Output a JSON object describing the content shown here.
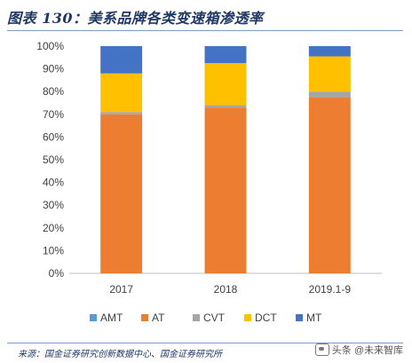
{
  "header": {
    "title": "图表 130：美系品牌各类变速箱渗透率"
  },
  "footer": {
    "source": "来源：国金证券研究创新数据中心、国金证券研究所",
    "watermark": "头条 @未来智库",
    "watermark_icon": "toutiao-logo-icon"
  },
  "chart_data": {
    "type": "bar",
    "stacked": true,
    "title": "图表 130：美系品牌各类变速箱渗透率",
    "xlabel": "",
    "ylabel": "",
    "ylim": [
      0,
      100
    ],
    "yticks": [
      "0%",
      "10%",
      "20%",
      "30%",
      "40%",
      "50%",
      "60%",
      "70%",
      "80%",
      "90%",
      "100%"
    ],
    "categories": [
      "2017",
      "2018",
      "2019.1-9"
    ],
    "legend_position": "bottom",
    "grid": false,
    "series": [
      {
        "name": "AMT",
        "color": "#5b9bd5",
        "values": [
          0.0,
          0.0,
          0.0
        ]
      },
      {
        "name": "AT",
        "color": "#ed7d31",
        "values": [
          70.0,
          73.0,
          77.5
        ]
      },
      {
        "name": "CVT",
        "color": "#a5a5a5",
        "values": [
          1.0,
          1.0,
          2.5
        ]
      },
      {
        "name": "DCT",
        "color": "#ffc000",
        "values": [
          17.0,
          18.5,
          15.5
        ]
      },
      {
        "name": "MT",
        "color": "#4472c4",
        "values": [
          12.0,
          7.5,
          4.5
        ]
      }
    ]
  }
}
